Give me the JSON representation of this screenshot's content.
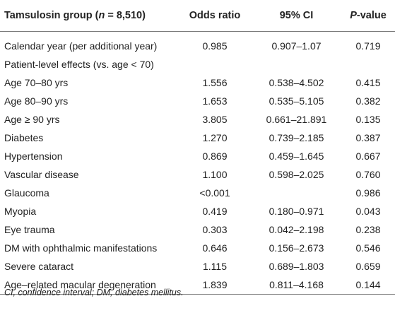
{
  "header": {
    "group_prefix": "Tamsulosin group (",
    "group_n": "n",
    "group_suffix": " = 8,510)",
    "odds_ratio": "Odds ratio",
    "ci": "95% CI",
    "p_prefix": "P",
    "p_suffix": "-value"
  },
  "rows": [
    {
      "label": "Calendar year (per additional year)",
      "or": "0.985",
      "ci": "0.907–1.07",
      "p": "0.719"
    },
    {
      "label": "Patient-level effects (vs. age < 70)",
      "or": "",
      "ci": "",
      "p": ""
    },
    {
      "label": "Age 70–80 yrs",
      "or": "1.556",
      "ci": "0.538–4.502",
      "p": "0.415"
    },
    {
      "label": "Age 80–90 yrs",
      "or": "1.653",
      "ci": "0.535–5.105",
      "p": "0.382"
    },
    {
      "label": "Age ≥ 90 yrs",
      "or": "3.805",
      "ci": "0.661–21.891",
      "p": "0.135"
    },
    {
      "label": "Diabetes",
      "or": "1.270",
      "ci": "0.739–2.185",
      "p": "0.387"
    },
    {
      "label": "Hypertension",
      "or": "0.869",
      "ci": "0.459–1.645",
      "p": "0.667"
    },
    {
      "label": "Vascular disease",
      "or": "1.100",
      "ci": "0.598–2.025",
      "p": "0.760"
    },
    {
      "label": "Glaucoma",
      "or": "<0.001",
      "ci": "",
      "p": "0.986"
    },
    {
      "label": "Myopia",
      "or": "0.419",
      "ci": "0.180–0.971",
      "p": "0.043"
    },
    {
      "label": "Eye trauma",
      "or": "0.303",
      "ci": "0.042–2.198",
      "p": "0.238"
    },
    {
      "label": "DM with ophthalmic manifestations",
      "or": "0.646",
      "ci": "0.156–2.673",
      "p": "0.546"
    },
    {
      "label": "Severe cataract",
      "or": "1.115",
      "ci": "0.689–1.803",
      "p": "0.659"
    },
    {
      "label": "Age–related macular degeneration",
      "or": "1.839",
      "ci": "0.811–4.168",
      "p": "0.144"
    }
  ],
  "footnote": "CI, confidence interval; DM, diabetes mellitus."
}
